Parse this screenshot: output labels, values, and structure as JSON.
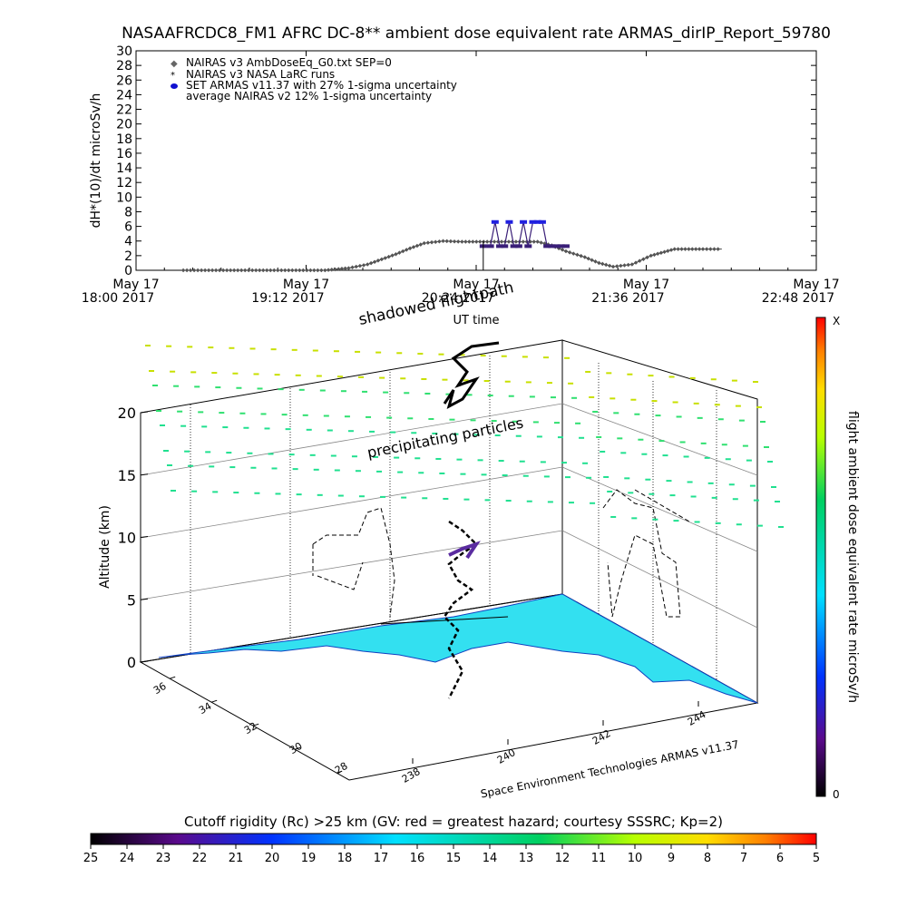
{
  "chart_data": [
    {
      "type": "scatter",
      "title": "NASAAFRCDC8_FM1 AFRC DC-8** ambient dose equivalent rate ARMAS_dirIP_Report_59780",
      "ylabel": "dH*(10)/dt microSv/h",
      "xlabel": "UT time",
      "ylim": [
        0,
        30
      ],
      "yticks": [
        "0",
        "2",
        "4",
        "6",
        "8",
        "10",
        "12",
        "14",
        "16",
        "18",
        "20",
        "22",
        "24",
        "26",
        "28",
        "30"
      ],
      "xticks": [
        {
          "line1": "May 17",
          "line2": "18:00 2017",
          "minutes": 0
        },
        {
          "line1": "May 17",
          "line2": "19:12 2017",
          "minutes": 72
        },
        {
          "line1": "May 17",
          "line2": "20:24 2017",
          "minutes": 144
        },
        {
          "line1": "May 17",
          "line2": "21:36 2017",
          "minutes": 216
        },
        {
          "line1": "May 17",
          "line2": "22:48 2017",
          "minutes": 288
        }
      ],
      "xlim_minutes": [
        0,
        288
      ],
      "legend": [
        "NAIRAS v3 AmbDoseEq_G0.txt SEP=0",
        "NAIRAS v3 NASA LaRC runs",
        "SET ARMAS v11.37 with 27% 1-sigma uncertainty",
        "average NAIRAS v2 12% 1-sigma uncertainty"
      ],
      "legend_placement": "top-left",
      "series": [
        {
          "name": "NAIRAS v3 AmbDoseEq_G0.txt SEP=0",
          "color": "#000000",
          "x_minutes": [
            20,
            60,
            80,
            90,
            98,
            104,
            110,
            116,
            122,
            130,
            138,
            170,
            176,
            182,
            190,
            196,
            202,
            210,
            218,
            228,
            240,
            248
          ],
          "y": [
            0,
            0,
            0,
            0.3,
            0.8,
            1.5,
            2.2,
            3.0,
            3.7,
            4.0,
            3.9,
            3.9,
            3.4,
            2.6,
            1.8,
            1.0,
            0.5,
            0.8,
            2.0,
            2.9,
            2.9,
            2.9
          ]
        },
        {
          "name": "SET ARMAS v11.37 with 27% 1-sigma uncertainty",
          "color": "#3a1f78",
          "x_minutes": [
            147,
            150,
            152,
            154,
            156,
            158,
            160,
            162,
            164,
            166,
            168,
            170,
            172,
            174,
            176,
            178,
            180,
            182
          ],
          "y": [
            3.3,
            3.3,
            6.6,
            3.3,
            3.3,
            6.6,
            3.3,
            3.3,
            6.6,
            3.3,
            6.6,
            6.6,
            6.6,
            3.3,
            3.3,
            3.3,
            3.3,
            3.3
          ]
        }
      ],
      "grid": false
    },
    {
      "type": "scatter",
      "subtype": "3d-perspective",
      "zlabel": "Altitude (km)",
      "zticks": [
        "0",
        "5",
        "10",
        "15",
        "20"
      ],
      "lat_ticks": [
        "36",
        "34",
        "32",
        "30",
        "28"
      ],
      "lon_ticks": [
        "238",
        "240",
        "242",
        "244"
      ],
      "annotations": [
        "shadowed flightpath",
        "precipitating particles",
        "Space Environment Technologies ARMAS v11.37"
      ],
      "colorbar_label": "flight ambient dose equivalent rate microSv/h",
      "colorbar_ticks": [
        "X",
        "0"
      ],
      "grid": true
    },
    {
      "type": "heatmap",
      "title": "Cutoff rigidity (Rc) >25 km (GV: red = greatest hazard; courtesy SSSRC; Kp=2)",
      "scale_ticks": [
        "25",
        "24",
        "23",
        "22",
        "21",
        "20",
        "19",
        "18",
        "17",
        "16",
        "15",
        "14",
        "13",
        "12",
        "11",
        "10",
        "9",
        "8",
        "7",
        "6",
        "5"
      ]
    }
  ]
}
